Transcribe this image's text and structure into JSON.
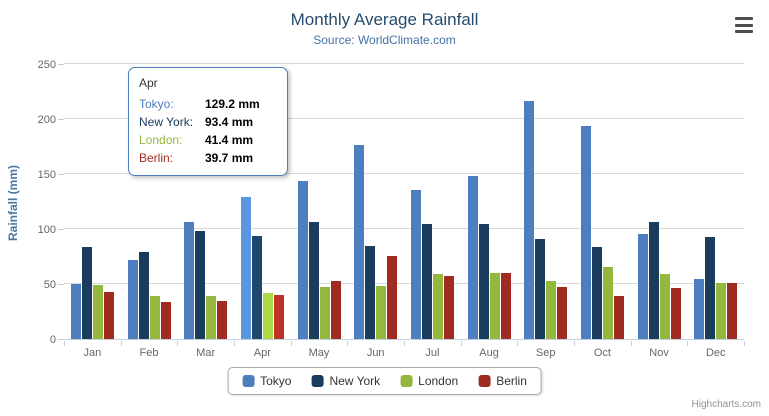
{
  "chart_data": {
    "type": "bar",
    "title": "Monthly Average Rainfall",
    "subtitle": "Source: WorldClimate.com",
    "xlabel": "",
    "ylabel": "Rainfall (mm)",
    "ylim": [
      0,
      250
    ],
    "yticks": [
      0,
      50,
      100,
      150,
      200,
      250
    ],
    "grid": true,
    "legend_position": "bottom",
    "categories": [
      "Jan",
      "Feb",
      "Mar",
      "Apr",
      "May",
      "Jun",
      "Jul",
      "Aug",
      "Sep",
      "Oct",
      "Nov",
      "Dec"
    ],
    "series": [
      {
        "name": "Tokyo",
        "color": "#4D7FBE",
        "values": [
          49.9,
          71.5,
          106.4,
          129.2,
          144.0,
          176.0,
          135.6,
          148.5,
          216.4,
          194.1,
          95.6,
          54.4
        ]
      },
      {
        "name": "New York",
        "color": "#1A3C5C",
        "values": [
          83.6,
          78.8,
          98.5,
          93.4,
          106.0,
          84.5,
          105.0,
          104.3,
          91.2,
          83.5,
          106.6,
          92.3
        ]
      },
      {
        "name": "London",
        "color": "#94B73E",
        "values": [
          48.9,
          38.8,
          39.3,
          41.4,
          47.0,
          48.3,
          59.0,
          59.6,
          52.4,
          65.2,
          59.3,
          51.2
        ]
      },
      {
        "name": "Berlin",
        "color": "#A02C21",
        "values": [
          42.4,
          33.2,
          34.5,
          39.7,
          52.6,
          75.5,
          57.4,
          60.4,
          47.6,
          39.1,
          46.8,
          51.1
        ]
      }
    ]
  },
  "tooltip": {
    "category": "Apr",
    "value_suffix": "mm",
    "rows": [
      {
        "label": "Tokyo:",
        "value": "129.2 mm",
        "color": "#4D7FBE"
      },
      {
        "label": "New York:",
        "value": "93.4 mm",
        "color": "#1A3C5C"
      },
      {
        "label": "London:",
        "value": "41.4 mm",
        "color": "#94B73E"
      },
      {
        "label": "Berlin:",
        "value": "39.7 mm",
        "color": "#A02C21"
      }
    ]
  },
  "icons": {
    "export_menu": "hamburger-menu-icon"
  },
  "credits": "Highcharts.com"
}
